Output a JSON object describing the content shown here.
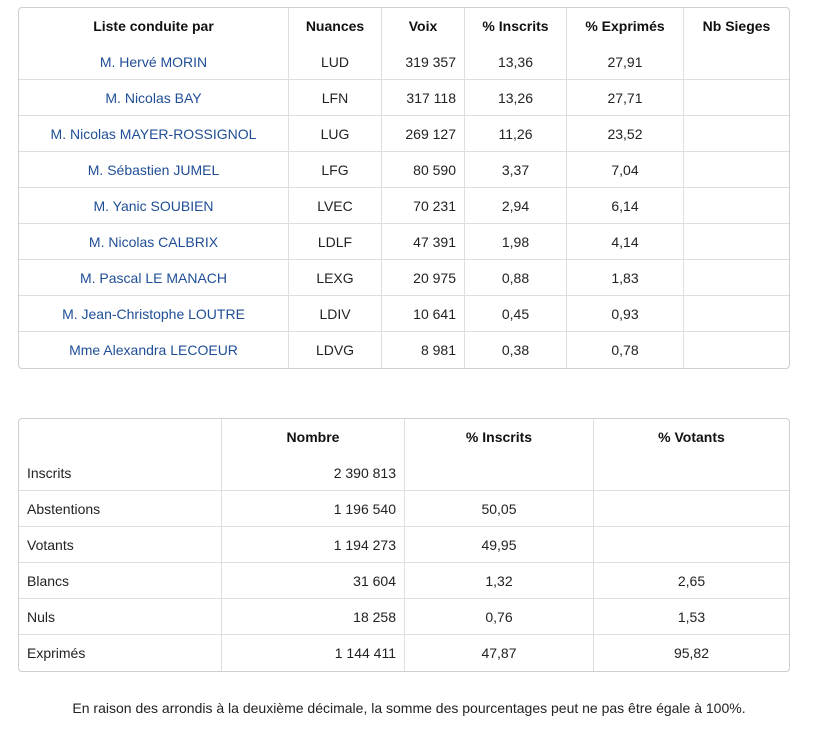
{
  "results": {
    "headers": [
      "Liste conduite par",
      "Nuances",
      "Voix",
      "% Inscrits",
      "% Exprimés",
      "Nb Sieges"
    ],
    "rows": [
      {
        "name": "M. Hervé MORIN",
        "nuance": "LUD",
        "voix": "319 357",
        "inscrits": "13,36",
        "exprimes": "27,91",
        "sieges": ""
      },
      {
        "name": "M. Nicolas BAY",
        "nuance": "LFN",
        "voix": "317 118",
        "inscrits": "13,26",
        "exprimes": "27,71",
        "sieges": ""
      },
      {
        "name": "M. Nicolas MAYER-ROSSIGNOL",
        "nuance": "LUG",
        "voix": "269 127",
        "inscrits": "11,26",
        "exprimes": "23,52",
        "sieges": ""
      },
      {
        "name": "M. Sébastien JUMEL",
        "nuance": "LFG",
        "voix": "80 590",
        "inscrits": "3,37",
        "exprimes": "7,04",
        "sieges": ""
      },
      {
        "name": "M. Yanic SOUBIEN",
        "nuance": "LVEC",
        "voix": "70 231",
        "inscrits": "2,94",
        "exprimes": "6,14",
        "sieges": ""
      },
      {
        "name": "M. Nicolas CALBRIX",
        "nuance": "LDLF",
        "voix": "47 391",
        "inscrits": "1,98",
        "exprimes": "4,14",
        "sieges": ""
      },
      {
        "name": "M. Pascal LE MANACH",
        "nuance": "LEXG",
        "voix": "20 975",
        "inscrits": "0,88",
        "exprimes": "1,83",
        "sieges": ""
      },
      {
        "name": "M. Jean-Christophe LOUTRE",
        "nuance": "LDIV",
        "voix": "10 641",
        "inscrits": "0,45",
        "exprimes": "0,93",
        "sieges": ""
      },
      {
        "name": "Mme Alexandra LECOEUR",
        "nuance": "LDVG",
        "voix": "8 981",
        "inscrits": "0,38",
        "exprimes": "0,78",
        "sieges": ""
      }
    ]
  },
  "summary": {
    "headers": [
      "",
      "Nombre",
      "% Inscrits",
      "% Votants"
    ],
    "rows": [
      {
        "label": "Inscrits",
        "nombre": "2 390 813",
        "inscrits": "",
        "votants": ""
      },
      {
        "label": "Abstentions",
        "nombre": "1 196 540",
        "inscrits": "50,05",
        "votants": ""
      },
      {
        "label": "Votants",
        "nombre": "1 194 273",
        "inscrits": "49,95",
        "votants": ""
      },
      {
        "label": "Blancs",
        "nombre": "31 604",
        "inscrits": "1,32",
        "votants": "2,65"
      },
      {
        "label": "Nuls",
        "nombre": "18 258",
        "inscrits": "0,76",
        "votants": "1,53"
      },
      {
        "label": "Exprimés",
        "nombre": "1 144 411",
        "inscrits": "47,87",
        "votants": "95,82"
      }
    ]
  },
  "footnote": "En raison des arrondis à la deuxième décimale, la somme des pourcentages peut ne pas être égale à 100%."
}
